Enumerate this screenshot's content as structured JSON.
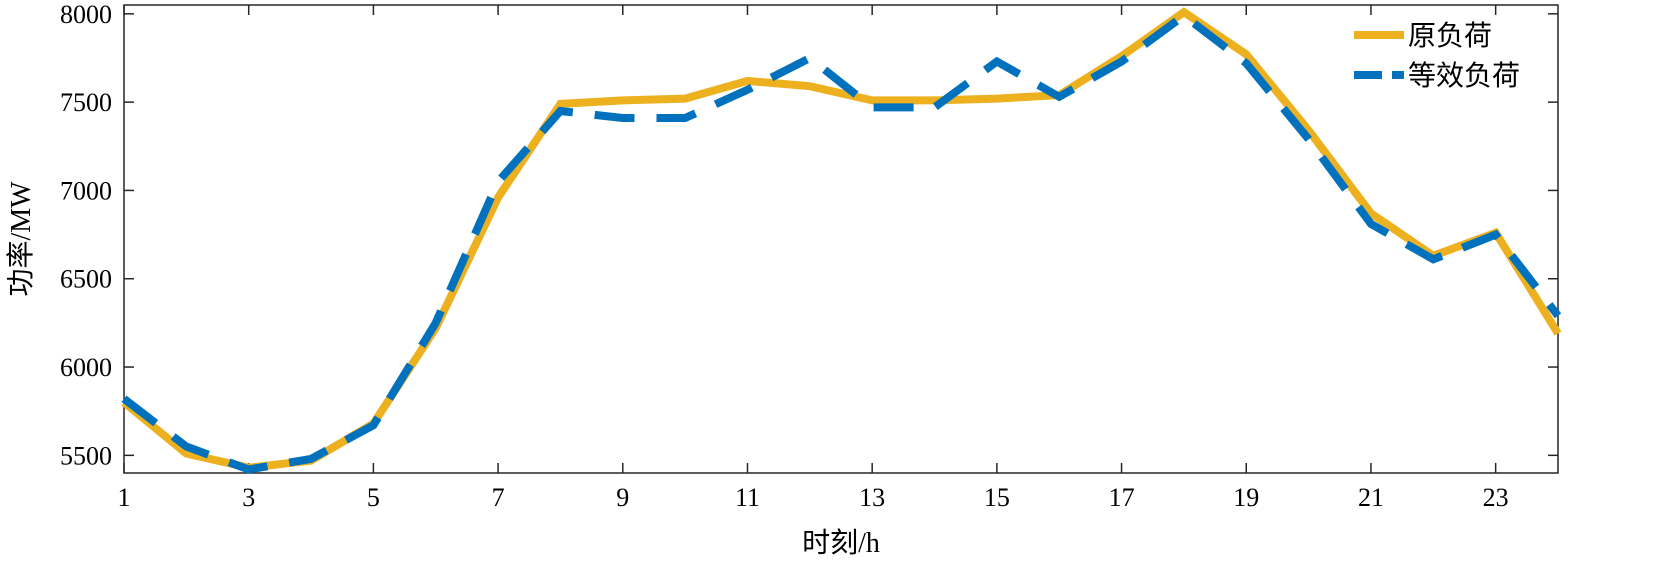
{
  "chart_data": {
    "type": "line",
    "xlabel": "时刻/h",
    "ylabel": "功率/MW",
    "xlim": [
      1,
      24
    ],
    "ylim": [
      5400,
      8050
    ],
    "xticks": [
      1,
      3,
      5,
      7,
      9,
      11,
      13,
      15,
      17,
      19,
      21,
      23
    ],
    "yticks": [
      5500,
      6000,
      6500,
      7000,
      7500,
      8000
    ],
    "grid": false,
    "legend_position": "top-right",
    "x": [
      1,
      2,
      3,
      4,
      5,
      6,
      7,
      8,
      9,
      10,
      11,
      12,
      13,
      14,
      15,
      16,
      17,
      18,
      19,
      20,
      21,
      22,
      23,
      24
    ],
    "series": [
      {
        "name": "原负荷",
        "color": "#EDB120",
        "style": "solid",
        "values": [
          5800,
          5510,
          5430,
          5470,
          5680,
          6220,
          6960,
          7490,
          7510,
          7520,
          7620,
          7590,
          7510,
          7510,
          7520,
          7540,
          7760,
          8010,
          7770,
          7340,
          6870,
          6630,
          6760,
          6190
        ]
      },
      {
        "name": "等效负荷",
        "color": "#0072BD",
        "style": "dashed",
        "values": [
          5820,
          5550,
          5420,
          5480,
          5670,
          6250,
          7050,
          7450,
          7410,
          7410,
          7570,
          7750,
          7470,
          7470,
          7730,
          7530,
          7730,
          7990,
          7720,
          7290,
          6810,
          6610,
          6750,
          6290
        ]
      }
    ]
  }
}
